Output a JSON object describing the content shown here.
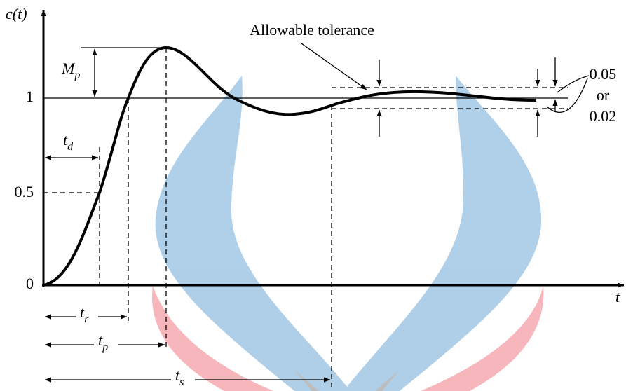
{
  "axes": {
    "y_label": "c(t)",
    "x_label": "t",
    "ticks": [
      "0",
      "0.5",
      "1"
    ]
  },
  "annotations": {
    "tolerance": "Allowable tolerance",
    "band_top": "0.05",
    "band_or": "or",
    "band_bottom": "0.02"
  },
  "intervals": [
    {
      "main": "M",
      "sub": "p"
    },
    {
      "main": "t",
      "sub": "d"
    },
    {
      "main": "t",
      "sub": "r"
    },
    {
      "main": "t",
      "sub": "p"
    },
    {
      "main": "t",
      "sub": "s"
    }
  ]
}
